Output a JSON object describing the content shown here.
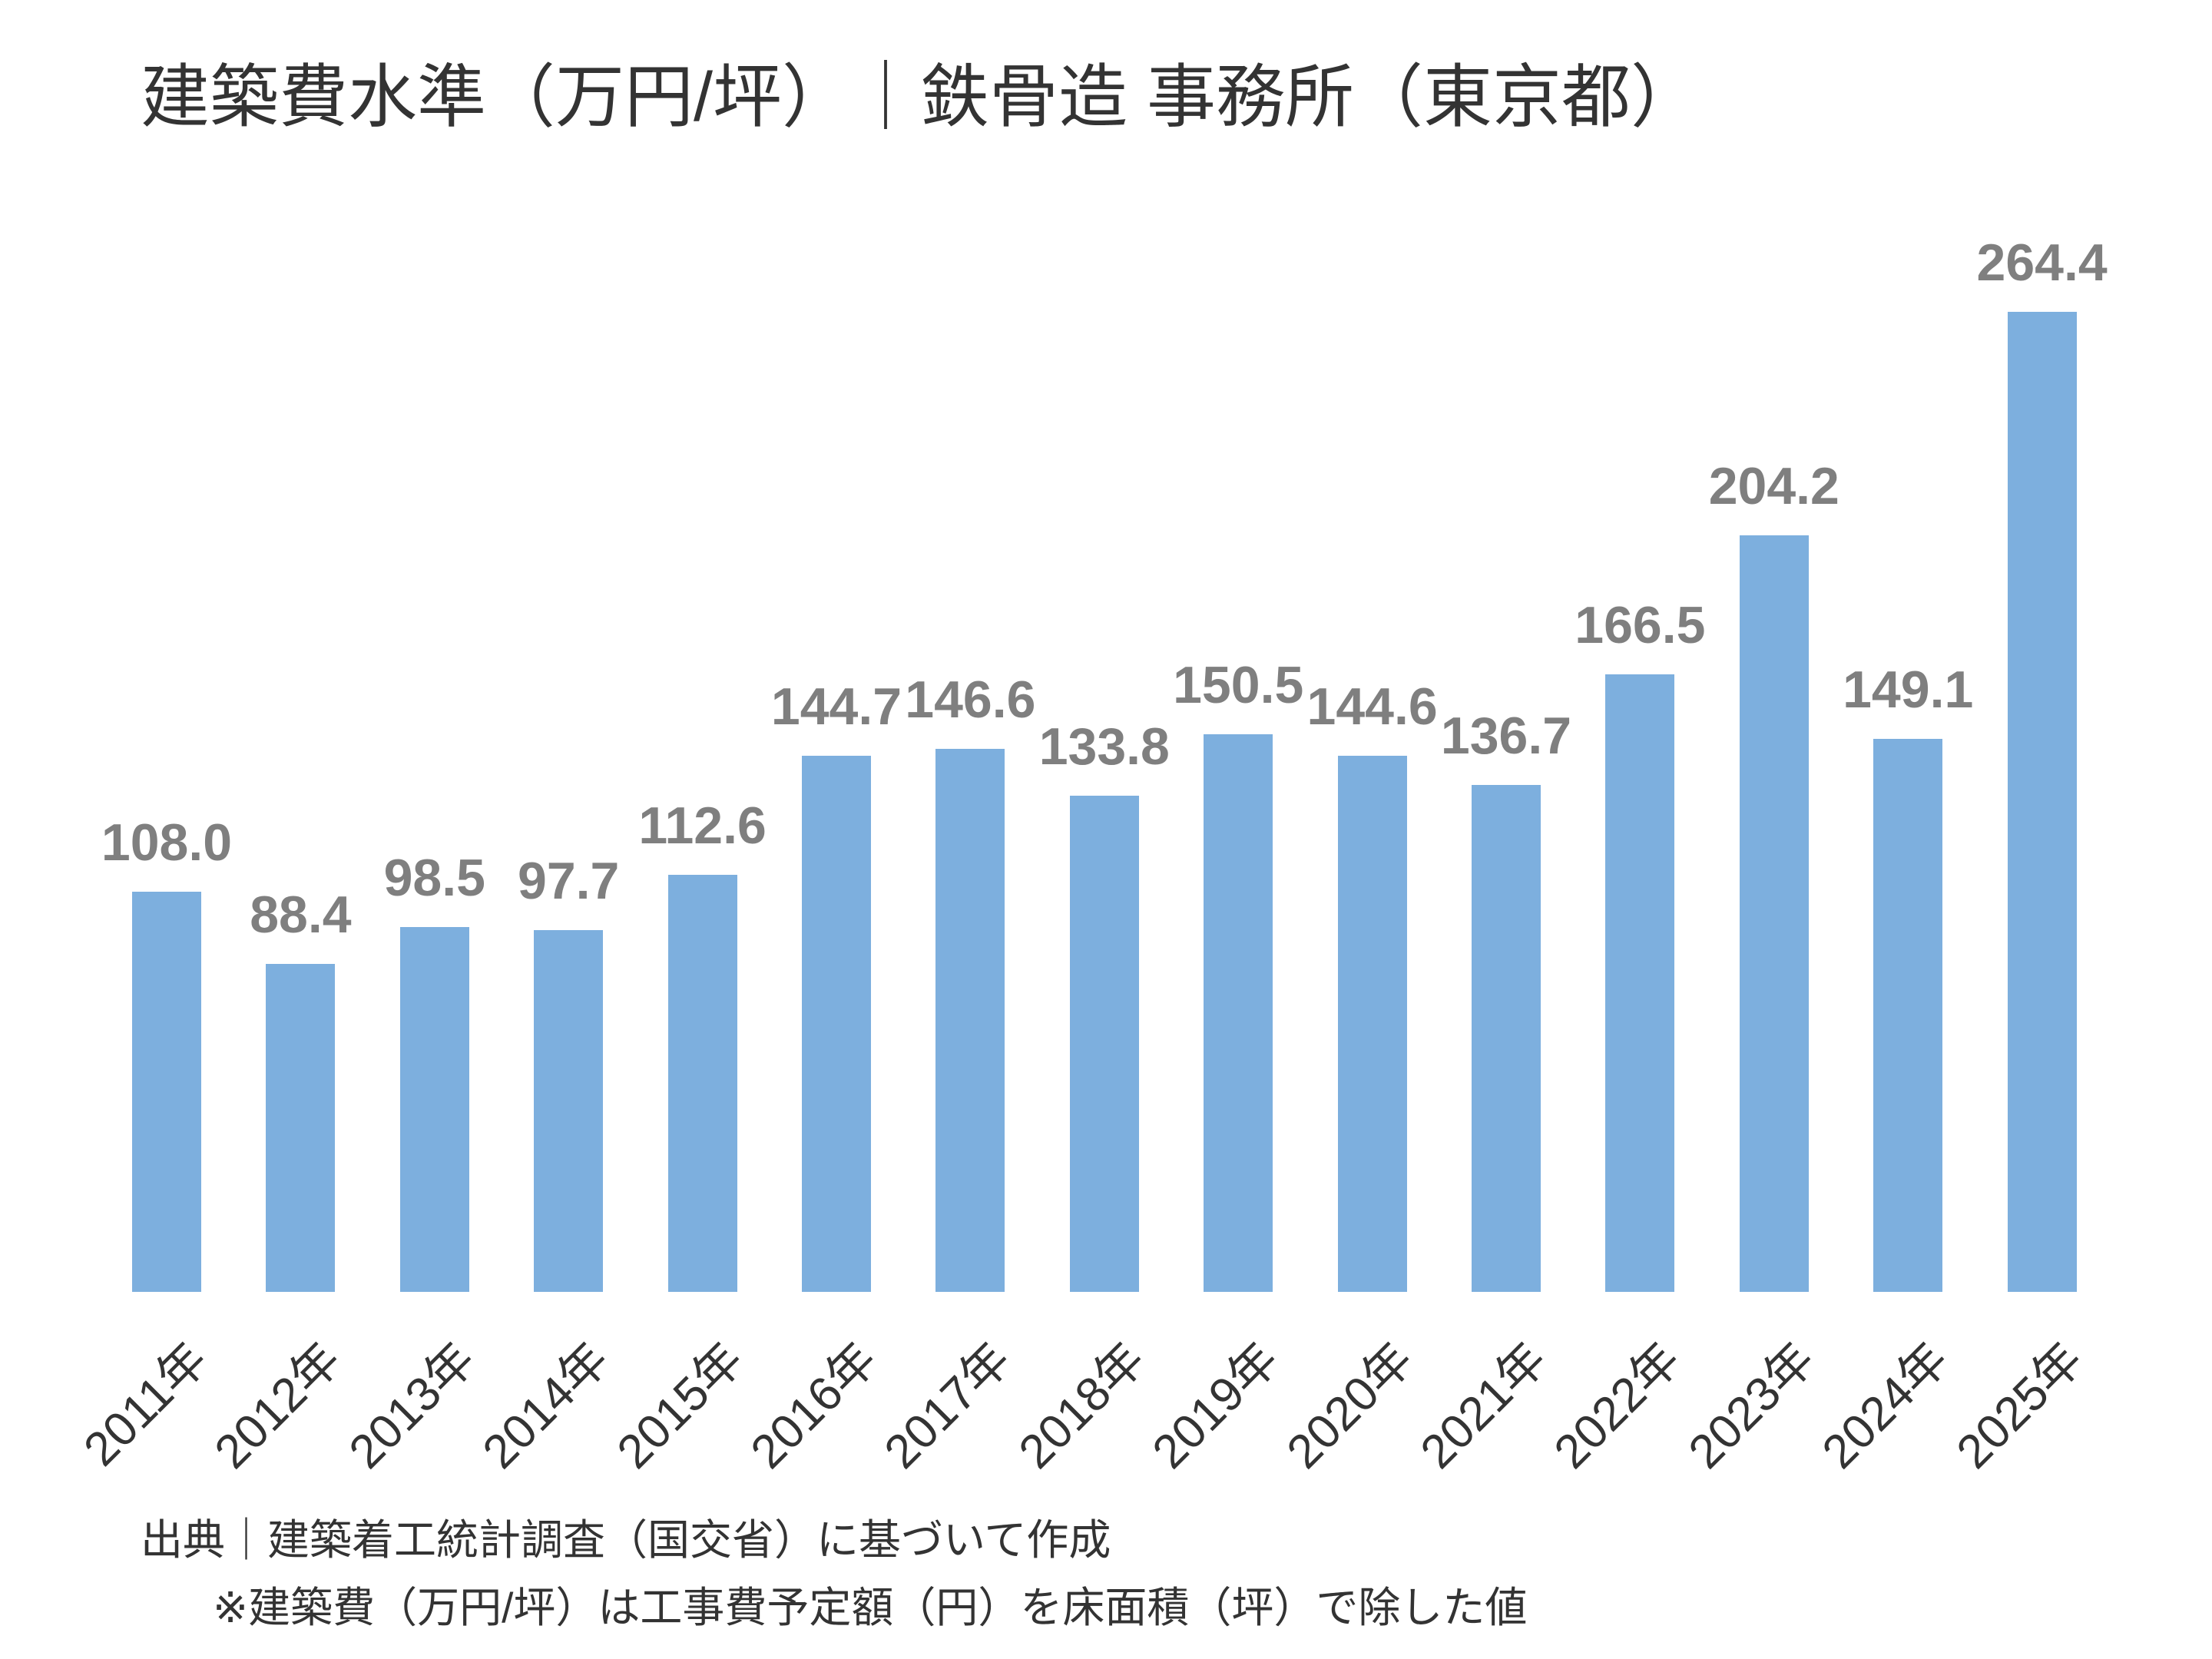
{
  "title": "建築費水準（万円/坪）｜鉄骨造 事務所（東京都）",
  "chart_data": {
    "type": "bar",
    "title": "建築費水準（万円/坪）｜鉄骨造 事務所（東京都）",
    "categories": [
      "2011年",
      "2012年",
      "2013年",
      "2014年",
      "2015年",
      "2016年",
      "2017年",
      "2018年",
      "2019年",
      "2020年",
      "2021年",
      "2022年",
      "2023年",
      "2024年",
      "2025年"
    ],
    "values": [
      108.0,
      88.4,
      98.5,
      97.7,
      112.6,
      144.7,
      146.6,
      133.8,
      150.5,
      144.6,
      136.7,
      166.5,
      204.2,
      149.1,
      264.4
    ],
    "value_labels": [
      "108.0",
      "88.4",
      "98.5",
      "97.7",
      "112.6",
      "144.7",
      "146.6",
      "133.8",
      "150.5",
      "144.6",
      "136.7",
      "166.5",
      "204.2",
      "149.1",
      "264.4"
    ],
    "xlabel": "",
    "ylabel": "",
    "ylim": [
      0,
      280
    ],
    "grid": false,
    "y_axis_visible": false,
    "legend": "none",
    "bar_color": "#7DAFDE",
    "value_label_color": "#7F7F7F",
    "text_color": "#333333",
    "background_color": "#FFFFFF"
  },
  "footer": {
    "line1": "出典｜建築着工統計調査（国交省）に基づいて作成",
    "line2": "※建築費（万円/坪）は工事費予定額（円）を床面積（坪）で除した値"
  }
}
